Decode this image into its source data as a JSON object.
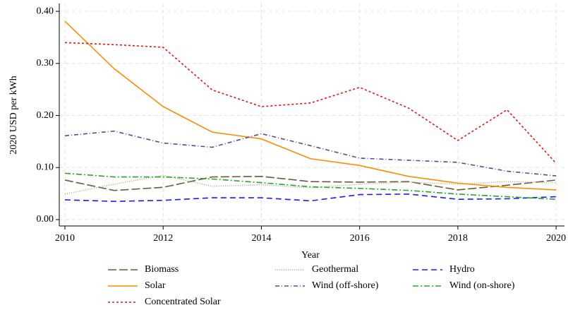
{
  "chart_data": {
    "type": "line",
    "x_label": "Year",
    "y_label": "2020 USD per kWh",
    "x": [
      2010,
      2011,
      2012,
      2013,
      2014,
      2015,
      2016,
      2017,
      2018,
      2019,
      2020
    ],
    "xlim": [
      2009.885,
      2020.17
    ],
    "xticks": [
      2010,
      2012,
      2014,
      2016,
      2018,
      2020
    ],
    "ylim": [
      -0.0122,
      0.415
    ],
    "yticks": [
      {
        "value": 0,
        "label": "0.00"
      },
      {
        "value": 0.1,
        "label": "0.10"
      },
      {
        "value": 0.2,
        "label": "0.20"
      },
      {
        "value": 0.3,
        "label": "0.30"
      },
      {
        "value": 0.4,
        "label": "0.40"
      }
    ],
    "grid": true,
    "legend": "bottom",
    "series": [
      {
        "name": "Biomass",
        "color": "#6b5a3e",
        "dash": "12,4",
        "values": [
          0.076,
          0.056,
          0.062,
          0.082,
          0.083,
          0.073,
          0.072,
          0.073,
          0.057,
          0.066,
          0.076
        ]
      },
      {
        "name": "Geothermal",
        "color": "#a8a890",
        "dash": "1,2",
        "values": [
          0.049,
          0.068,
          0.085,
          0.064,
          0.067,
          0.061,
          0.068,
          0.072,
          0.068,
          0.073,
          0.071
        ]
      },
      {
        "name": "Hydro",
        "color": "#1a1aff",
        "dash": "8,5",
        "values": [
          0.038,
          0.035,
          0.037,
          0.042,
          0.042,
          0.036,
          0.048,
          0.049,
          0.039,
          0.04,
          0.044
        ]
      },
      {
        "name": "Solar",
        "color": "#ff8c00",
        "dash": "none",
        "values": [
          0.381,
          0.29,
          0.217,
          0.168,
          0.155,
          0.117,
          0.104,
          0.083,
          0.07,
          0.062,
          0.057
        ]
      },
      {
        "name": "Wind (off-shore)",
        "color": "#5a4a9a",
        "dash": "6,3,1,3",
        "values": [
          0.161,
          0.17,
          0.147,
          0.139,
          0.165,
          0.142,
          0.118,
          0.114,
          0.11,
          0.093,
          0.084
        ]
      },
      {
        "name": "Wind (on-shore)",
        "color": "#22aa22",
        "dash": "8,3,2,3",
        "values": [
          0.089,
          0.082,
          0.082,
          0.078,
          0.071,
          0.063,
          0.06,
          0.056,
          0.049,
          0.044,
          0.039
        ]
      },
      {
        "name": "Concentrated Solar",
        "color": "#ee1111",
        "dash": "3,3",
        "values": [
          0.34,
          0.336,
          0.331,
          0.249,
          0.217,
          0.224,
          0.254,
          0.214,
          0.152,
          0.211,
          0.108
        ]
      }
    ]
  }
}
